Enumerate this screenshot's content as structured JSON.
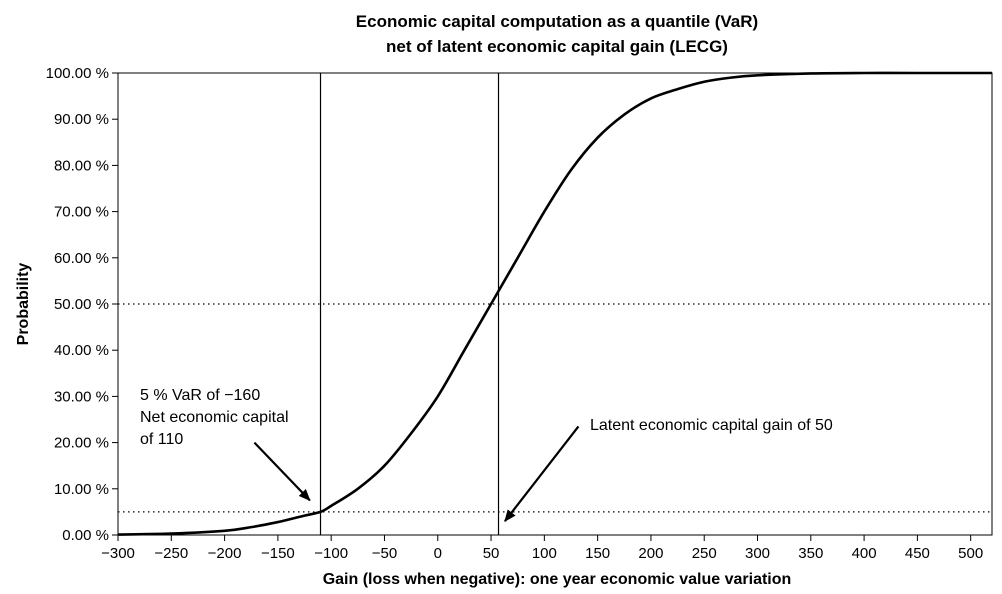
{
  "chart_data": {
    "type": "line",
    "title_lines": [
      "Economic capital computation as a quantile (VaR)",
      "net of latent economic capital gain (LECG)"
    ],
    "xlabel": "Gain (loss when negative): one year economic value variation",
    "ylabel": "Probability",
    "xlim": [
      -300,
      520
    ],
    "ylim": [
      0,
      1
    ],
    "x_ticks": [
      -300,
      -250,
      -200,
      -150,
      -100,
      -50,
      0,
      50,
      100,
      150,
      200,
      250,
      300,
      350,
      400,
      450,
      500
    ],
    "x_tick_labels": [
      "−300",
      "−250",
      "−200",
      "−150",
      "−100",
      "−50",
      "0",
      "50",
      "100",
      "150",
      "200",
      "250",
      "300",
      "350",
      "400",
      "450",
      "500"
    ],
    "y_ticks": [
      0,
      0.1,
      0.2,
      0.3,
      0.4,
      0.5,
      0.6,
      0.7,
      0.8,
      0.9,
      1.0
    ],
    "y_tick_labels": [
      "0.00 %",
      "10.00 %",
      "20.00 %",
      "30.00 %",
      "40.00 %",
      "50.00 %",
      "60.00 %",
      "70.00 %",
      "80.00 %",
      "90.00 %",
      "100.00 %"
    ],
    "grid": false,
    "series": [
      {
        "x": [
          -300,
          -250,
          -200,
          -175,
          -150,
          -125,
          -110,
          -100,
          -75,
          -50,
          -25,
          0,
          25,
          50,
          75,
          100,
          125,
          150,
          175,
          200,
          225,
          250,
          275,
          300,
          350,
          400,
          450,
          520
        ],
        "y": [
          0.001,
          0.003,
          0.009,
          0.017,
          0.028,
          0.042,
          0.05,
          0.063,
          0.1,
          0.15,
          0.22,
          0.3,
          0.4,
          0.5,
          0.6,
          0.7,
          0.79,
          0.86,
          0.91,
          0.945,
          0.965,
          0.981,
          0.99,
          0.995,
          0.999,
          1.0,
          1.0,
          1.0
        ]
      }
    ],
    "vertical_lines": [
      -110,
      57
    ],
    "horizontal_lines_dotted": [
      0.5,
      0.05
    ],
    "annotations": [
      {
        "lines": [
          "5 % VaR of −160",
          "Net economic capital",
          "of 110"
        ],
        "arrow_from": [
          -172,
          0.2
        ],
        "arrow_to": [
          -120,
          0.075
        ]
      },
      {
        "lines": [
          "Latent economic capital gain of 50"
        ],
        "arrow_from": [
          132,
          0.235
        ],
        "arrow_to": [
          63,
          0.03
        ]
      }
    ]
  }
}
